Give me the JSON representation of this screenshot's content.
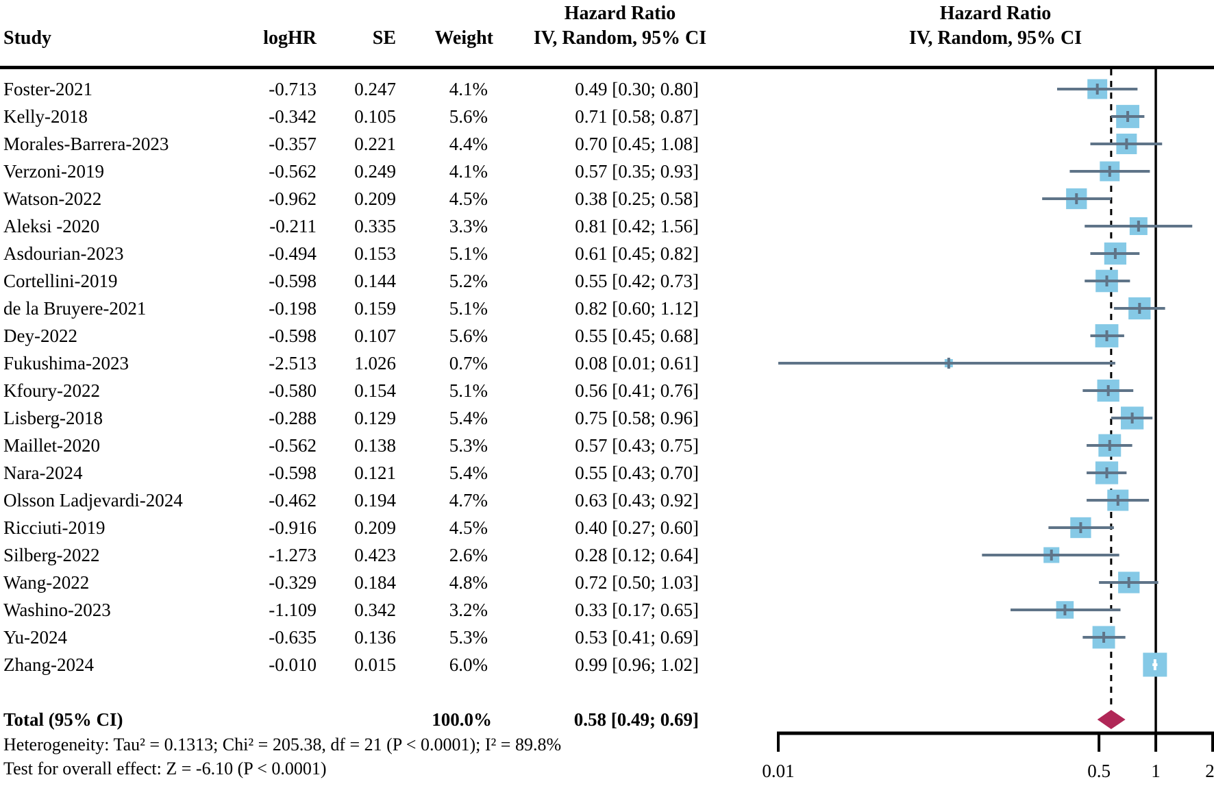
{
  "header": {
    "columns": {
      "study": "Study",
      "loghr": "logHR",
      "se": "SE",
      "weight": "Weight",
      "effect": "IV, Random, 95% CI"
    },
    "effect_title": "Hazard Ratio",
    "plot": {
      "title": "Hazard Ratio",
      "subtitle": "IV, Random, 95% CI"
    }
  },
  "chart_data": {
    "type": "forest",
    "effect_measure": "Hazard Ratio",
    "model": "IV, Random, 95% CI",
    "x_scale": "log",
    "x_range": [
      0.01,
      2
    ],
    "x_ticks": [
      "0.01",
      "0.5",
      "1",
      "2"
    ],
    "reference_line": 1,
    "studies": [
      {
        "name": "Foster-2021",
        "loghr": "-0.713",
        "se": "0.247",
        "weight": "4.1%",
        "w": 4.1,
        "hr": 0.49,
        "lo": 0.3,
        "hi": 0.8,
        "label": "0.49 [0.30; 0.80]"
      },
      {
        "name": "Kelly-2018",
        "loghr": "-0.342",
        "se": "0.105",
        "weight": "5.6%",
        "w": 5.6,
        "hr": 0.71,
        "lo": 0.58,
        "hi": 0.87,
        "label": "0.71 [0.58; 0.87]"
      },
      {
        "name": "Morales-Barrera-2023",
        "loghr": "-0.357",
        "se": "0.221",
        "weight": "4.4%",
        "w": 4.4,
        "hr": 0.7,
        "lo": 0.45,
        "hi": 1.08,
        "label": "0.70 [0.45; 1.08]"
      },
      {
        "name": "Verzoni-2019",
        "loghr": "-0.562",
        "se": "0.249",
        "weight": "4.1%",
        "w": 4.1,
        "hr": 0.57,
        "lo": 0.35,
        "hi": 0.93,
        "label": "0.57 [0.35; 0.93]"
      },
      {
        "name": "Watson-2022",
        "loghr": "-0.962",
        "se": "0.209",
        "weight": "4.5%",
        "w": 4.5,
        "hr": 0.38,
        "lo": 0.25,
        "hi": 0.58,
        "label": "0.38 [0.25; 0.58]"
      },
      {
        "name": "Aleksi -2020",
        "loghr": "-0.211",
        "se": "0.335",
        "weight": "3.3%",
        "w": 3.3,
        "hr": 0.81,
        "lo": 0.42,
        "hi": 1.56,
        "label": "0.81 [0.42; 1.56]"
      },
      {
        "name": "Asdourian-2023",
        "loghr": "-0.494",
        "se": "0.153",
        "weight": "5.1%",
        "w": 5.1,
        "hr": 0.61,
        "lo": 0.45,
        "hi": 0.82,
        "label": "0.61 [0.45; 0.82]"
      },
      {
        "name": "Cortellini-2019",
        "loghr": "-0.598",
        "se": "0.144",
        "weight": "5.2%",
        "w": 5.2,
        "hr": 0.55,
        "lo": 0.42,
        "hi": 0.73,
        "label": "0.55 [0.42; 0.73]"
      },
      {
        "name": "de la Bruyere-2021",
        "loghr": "-0.198",
        "se": "0.159",
        "weight": "5.1%",
        "w": 5.1,
        "hr": 0.82,
        "lo": 0.6,
        "hi": 1.12,
        "label": "0.82 [0.60; 1.12]"
      },
      {
        "name": "Dey-2022",
        "loghr": "-0.598",
        "se": "0.107",
        "weight": "5.6%",
        "w": 5.6,
        "hr": 0.55,
        "lo": 0.45,
        "hi": 0.68,
        "label": "0.55 [0.45; 0.68]"
      },
      {
        "name": "Fukushima-2023",
        "loghr": "-2.513",
        "se": "1.026",
        "weight": "0.7%",
        "w": 0.7,
        "hr": 0.08,
        "lo": 0.01,
        "hi": 0.61,
        "label": "0.08 [0.01; 0.61]"
      },
      {
        "name": "Kfoury-2022",
        "loghr": "-0.580",
        "se": "0.154",
        "weight": "5.1%",
        "w": 5.1,
        "hr": 0.56,
        "lo": 0.41,
        "hi": 0.76,
        "label": "0.56 [0.41; 0.76]"
      },
      {
        "name": "Lisberg-2018",
        "loghr": "-0.288",
        "se": "0.129",
        "weight": "5.4%",
        "w": 5.4,
        "hr": 0.75,
        "lo": 0.58,
        "hi": 0.96,
        "label": "0.75 [0.58; 0.96]"
      },
      {
        "name": "Maillet-2020",
        "loghr": "-0.562",
        "se": "0.138",
        "weight": "5.3%",
        "w": 5.3,
        "hr": 0.57,
        "lo": 0.43,
        "hi": 0.75,
        "label": "0.57 [0.43; 0.75]"
      },
      {
        "name": "Nara-2024",
        "loghr": "-0.598",
        "se": "0.121",
        "weight": "5.4%",
        "w": 5.4,
        "hr": 0.55,
        "lo": 0.43,
        "hi": 0.7,
        "label": "0.55 [0.43; 0.70]"
      },
      {
        "name": "Olsson Ladjevardi-2024",
        "loghr": "-0.462",
        "se": "0.194",
        "weight": "4.7%",
        "w": 4.7,
        "hr": 0.63,
        "lo": 0.43,
        "hi": 0.92,
        "label": "0.63 [0.43; 0.92]"
      },
      {
        "name": "Ricciuti-2019",
        "loghr": "-0.916",
        "se": "0.209",
        "weight": "4.5%",
        "w": 4.5,
        "hr": 0.4,
        "lo": 0.27,
        "hi": 0.6,
        "label": "0.40 [0.27; 0.60]"
      },
      {
        "name": "Silberg-2022",
        "loghr": "-1.273",
        "se": "0.423",
        "weight": "2.6%",
        "w": 2.6,
        "hr": 0.28,
        "lo": 0.12,
        "hi": 0.64,
        "label": "0.28 [0.12; 0.64]"
      },
      {
        "name": "Wang-2022",
        "loghr": "-0.329",
        "se": "0.184",
        "weight": "4.8%",
        "w": 4.8,
        "hr": 0.72,
        "lo": 0.5,
        "hi": 1.03,
        "label": "0.72 [0.50; 1.03]"
      },
      {
        "name": "Washino-2023",
        "loghr": "-1.109",
        "se": "0.342",
        "weight": "3.2%",
        "w": 3.2,
        "hr": 0.33,
        "lo": 0.17,
        "hi": 0.65,
        "label": "0.33 [0.17; 0.65]"
      },
      {
        "name": "Yu-2024",
        "loghr": "-0.635",
        "se": "0.136",
        "weight": "5.3%",
        "w": 5.3,
        "hr": 0.53,
        "lo": 0.41,
        "hi": 0.69,
        "label": "0.53 [0.41; 0.69]"
      },
      {
        "name": "Zhang-2024",
        "loghr": "-0.010",
        "se": "0.015",
        "weight": "6.0%",
        "w": 6.0,
        "hr": 0.99,
        "lo": 0.96,
        "hi": 1.02,
        "label": "0.99 [0.96; 1.02]"
      }
    ],
    "total": {
      "name": "Total (95% CI)",
      "weight": "100.0%",
      "w": 100.0,
      "hr": 0.58,
      "lo": 0.49,
      "hi": 0.69,
      "label": "0.58 [0.49; 0.69]"
    },
    "footnotes": {
      "heterogeneity": "Heterogeneity: Tau² = 0.1313; Chi² = 205.38, df = 21 (P < 0.0001); I² = 89.8%",
      "overall_effect": "Test for overall effect: Z = -6.10 (P < 0.0001)"
    },
    "colors": {
      "square": "#85c9e6",
      "ci_line": "#5f7488",
      "diamond": "#b02757",
      "axis": "#000000",
      "narrow_marker": "#ffffff"
    }
  }
}
